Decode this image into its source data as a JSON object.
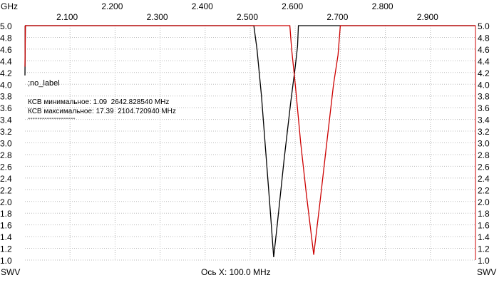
{
  "chart_data": {
    "type": "line",
    "x_unit_label": "GHz",
    "y_axis_label": "SWV",
    "x_axis_caption": "Ось X: 100.0 MHz",
    "xlim": [
      2.0,
      3.0
    ],
    "ylim": [
      1.0,
      5.0
    ],
    "x_ticks": [
      "2.100",
      "2.200",
      "2.300",
      "2.400",
      "2.500",
      "2.600",
      "2.700",
      "2.800",
      "2.900"
    ],
    "y_ticks": [
      "1.0",
      "1.2",
      "1.4",
      "1.6",
      "1.8",
      "2.0",
      "2.2",
      "2.4",
      "2.6",
      "2.8",
      "3.0",
      "3.2",
      "3.4",
      "3.6",
      "3.8",
      "4.0",
      "4.2",
      "4.4",
      "4.6",
      "4.8",
      "5.0"
    ],
    "grid": true,
    "series": [
      {
        "color": "#000000",
        "points": [
          [
            2.0,
            4.15
          ],
          [
            2.001,
            5.0
          ],
          [
            2.508,
            5.0
          ],
          [
            2.515,
            4.6
          ],
          [
            2.525,
            3.8
          ],
          [
            2.535,
            2.8
          ],
          [
            2.545,
            1.8
          ],
          [
            2.552,
            1.05
          ],
          [
            2.56,
            1.6
          ],
          [
            2.575,
            2.7
          ],
          [
            2.59,
            3.7
          ],
          [
            2.6,
            4.3
          ],
          [
            2.605,
            4.65
          ],
          [
            2.607,
            5.0
          ],
          [
            3.0,
            5.0
          ]
        ]
      },
      {
        "color": "#cc0000",
        "points": [
          [
            2.0,
            4.3
          ],
          [
            2.001,
            5.0
          ],
          [
            2.588,
            5.0
          ],
          [
            2.592,
            4.6
          ],
          [
            2.6,
            4.0
          ],
          [
            2.612,
            3.0
          ],
          [
            2.625,
            2.1
          ],
          [
            2.641,
            1.09
          ],
          [
            2.655,
            2.0
          ],
          [
            2.67,
            3.0
          ],
          [
            2.685,
            4.0
          ],
          [
            2.695,
            4.5
          ],
          [
            2.7,
            5.0
          ],
          [
            3.0,
            5.0
          ]
        ]
      }
    ]
  },
  "info": {
    "label": ";no_label",
    "swr_min": "КСВ минимальное: 1.09  2642.828540 MHz",
    "swr_max": "КСВ максимальное: 17.39  2104.720940 MHz",
    "separator": "--------------------"
  }
}
